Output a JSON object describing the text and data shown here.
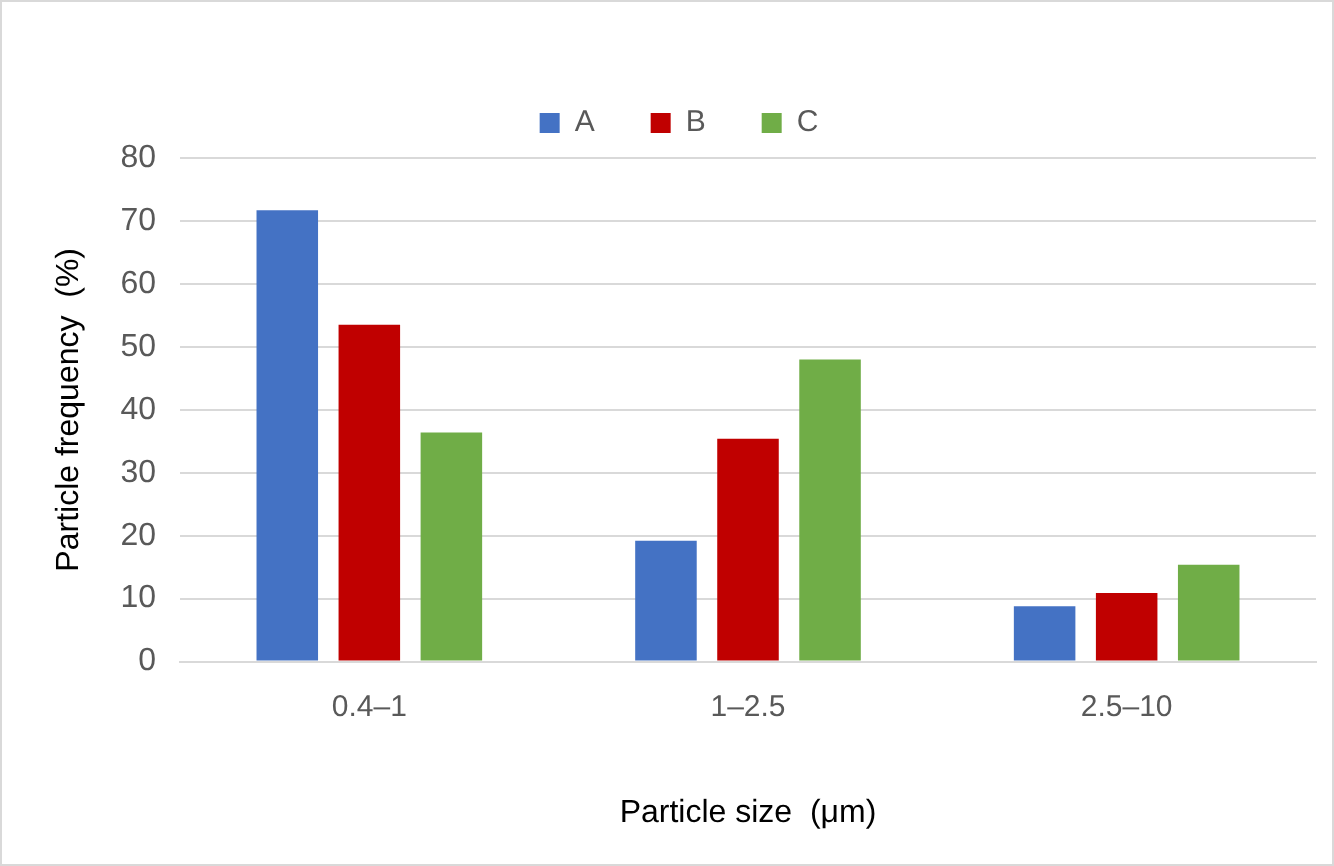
{
  "chart_data": {
    "type": "bar",
    "xlabel": "Particle size  (μm)",
    "ylabel": "Particle frequency  (%)",
    "categories": [
      "0.4–1",
      "1–2.5",
      "2.5–10"
    ],
    "series": [
      {
        "name": "A",
        "color": "#4472c4",
        "values": [
          71.7,
          19.2,
          8.8
        ]
      },
      {
        "name": "B",
        "color": "#c00000",
        "values": [
          53.5,
          35.4,
          10.9
        ]
      },
      {
        "name": "C",
        "color": "#70ad47",
        "values": [
          36.4,
          48.0,
          15.4
        ]
      }
    ],
    "ylim": [
      0,
      80
    ],
    "yticks": [
      0,
      10,
      20,
      30,
      40,
      50,
      60,
      70,
      80
    ],
    "grid": "y",
    "legend": "top"
  }
}
